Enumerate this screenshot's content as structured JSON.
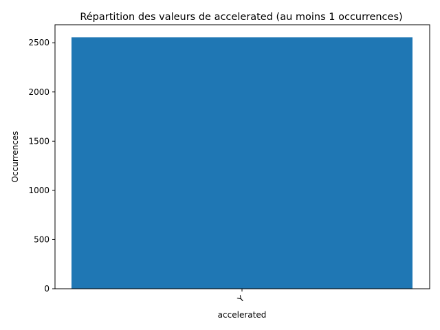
{
  "chart_data": {
    "type": "bar",
    "title": "Répartition des valeurs de accelerated (au moins 1 occurrences)",
    "xlabel": "accelerated",
    "ylabel": "Occurrences",
    "categories": [
      "Y"
    ],
    "values": [
      2555
    ],
    "ylim": [
      0,
      2683
    ],
    "yticks": [
      0,
      500,
      1000,
      1500,
      2000,
      2500
    ],
    "bar_color": "#1f77b4",
    "grid": false,
    "legend": "none"
  }
}
